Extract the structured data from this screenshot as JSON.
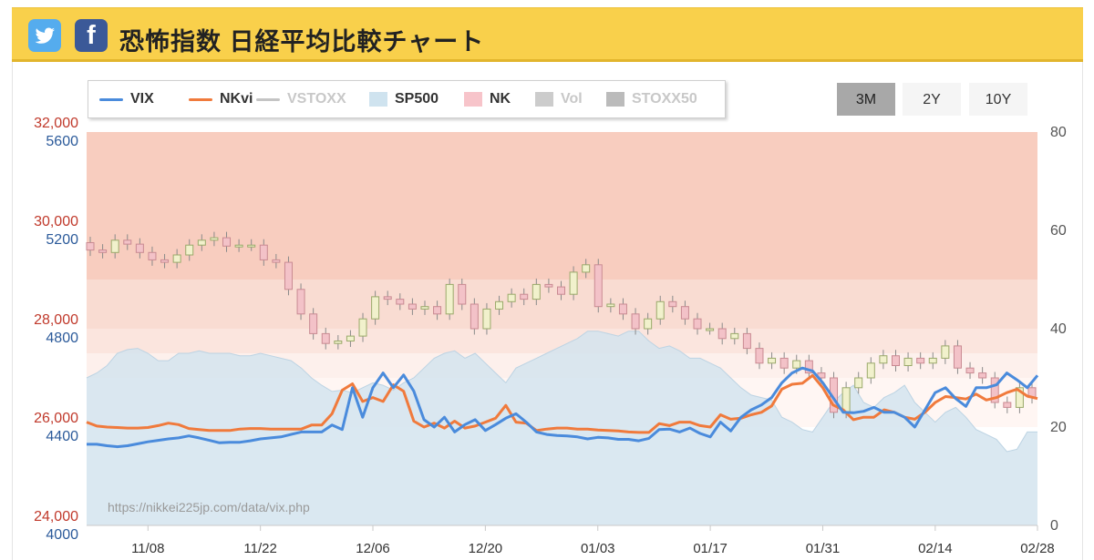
{
  "header": {
    "title": "恐怖指数 日経平均比較チャート",
    "twitter_icon": "twitter-icon",
    "facebook_icon": "facebook-icon",
    "facebook_glyph": "f",
    "bar_color": "#f9d04b"
  },
  "legend": [
    {
      "label": "VIX",
      "kind": "line",
      "color": "#4a8bdc",
      "active": true
    },
    {
      "label": "NKvi",
      "kind": "line",
      "color": "#f07a3c",
      "active": true
    },
    {
      "label": "VSTOXX",
      "kind": "line",
      "color": "#c4c4c4",
      "active": false
    },
    {
      "label": "SP500",
      "kind": "area",
      "color": "#cfe3ef",
      "active": true
    },
    {
      "label": "NK",
      "kind": "area",
      "color": "#f7c4ca",
      "active": true
    },
    {
      "label": "Vol",
      "kind": "area",
      "color": "#cccccc",
      "active": false
    },
    {
      "label": "STOXX50",
      "kind": "area",
      "color": "#bbbbbb",
      "active": false
    }
  ],
  "range_buttons": [
    {
      "label": "3M",
      "active": true
    },
    {
      "label": "2Y",
      "active": false
    },
    {
      "label": "10Y",
      "active": false
    }
  ],
  "watermark": "https://nikkei225jp.com/data/vix.php",
  "chart_data": {
    "type": "line",
    "x_ticks": [
      "11/08",
      "11/22",
      "12/06",
      "12/20",
      "01/03",
      "01/17",
      "01/31",
      "02/14",
      "02/28"
    ],
    "y_axis_left_nk": {
      "ticks": [
        "32,000",
        "30,000",
        "28,000",
        "26,000",
        "24,000"
      ],
      "range": [
        24000,
        32000
      ],
      "color": "#c0392b"
    },
    "y_axis_left_sp500": {
      "ticks": [
        "5600",
        "5200",
        "4800",
        "4400",
        "4000"
      ],
      "range": [
        4000,
        5600
      ],
      "color": "#2b5a9a"
    },
    "y_axis_right": {
      "ticks": [
        "80",
        "60",
        "40",
        "20",
        "0"
      ],
      "range": [
        0,
        80
      ]
    },
    "background_bands": [
      {
        "from": 50,
        "to": 80,
        "color": "#f8cdbf"
      },
      {
        "from": 40,
        "to": 50,
        "color": "#f9dcd2"
      },
      {
        "from": 35,
        "to": 40,
        "color": "#fbe5de"
      },
      {
        "from": 30,
        "to": 35,
        "color": "#fdf0ec"
      },
      {
        "from": 20,
        "to": 30,
        "color": "#fff6f3"
      }
    ],
    "series": [
      {
        "name": "VIX",
        "axis": "right",
        "color": "#4a8bdc",
        "values": [
          16.5,
          16.5,
          16.2,
          16.0,
          16.2,
          16.6,
          17.0,
          17.3,
          17.6,
          17.8,
          18.2,
          17.8,
          17.3,
          16.8,
          16.9,
          16.9,
          17.2,
          17.6,
          17.8,
          18.0,
          18.5,
          19.0,
          19.0,
          19.0,
          20.4,
          19.5,
          28.0,
          22.0,
          28.0,
          31.0,
          28.0,
          30.6,
          27.3,
          21.5,
          20.0,
          22.0,
          19.0,
          20.5,
          21.5,
          19.3,
          20.5,
          21.8,
          22.7,
          21.0,
          19.0,
          18.5,
          18.3,
          18.2,
          18.0,
          17.6,
          17.9,
          17.8,
          17.5,
          17.5,
          17.2,
          17.7,
          19.5,
          19.6,
          19.0,
          19.8,
          18.7,
          18.0,
          21.0,
          19.2,
          22.0,
          23.5,
          24.5,
          26.0,
          29.0,
          31.0,
          32.0,
          31.4,
          29.0,
          26.0,
          23.0,
          22.9,
          23.2,
          24.0,
          23.0,
          23.0,
          22.0,
          20.0,
          23.5,
          27.0,
          28.0,
          25.8,
          24.2,
          28.0,
          28.0,
          28.6,
          31.0,
          29.6,
          28.0,
          30.5
        ]
      },
      {
        "name": "NKvi",
        "axis": "right",
        "color": "#f07a3c",
        "values": [
          21.0,
          20.2,
          20.0,
          19.9,
          19.8,
          19.8,
          19.9,
          20.3,
          20.8,
          20.5,
          19.7,
          19.5,
          19.3,
          19.3,
          19.3,
          19.6,
          19.7,
          19.7,
          19.6,
          19.6,
          19.6,
          19.6,
          20.4,
          20.4,
          22.7,
          27.5,
          28.8,
          25.2,
          26.0,
          25.2,
          28.6,
          27.3,
          21.2,
          20.0,
          20.8,
          19.8,
          21.2,
          19.8,
          20.2,
          21.0,
          21.8,
          24.4,
          21.0,
          20.8,
          19.3,
          19.6,
          19.8,
          19.8,
          19.6,
          19.6,
          19.4,
          19.3,
          19.2,
          19.0,
          18.9,
          18.9,
          20.7,
          20.3,
          21.0,
          21.0,
          20.3,
          20.0,
          22.5,
          21.6,
          21.8,
          22.5,
          23.0,
          24.3,
          27.7,
          28.7,
          28.9,
          30.5,
          28.0,
          24.5,
          23.5,
          21.5,
          22.0,
          22.0,
          23.5,
          23.0,
          22.0,
          21.6,
          23.0,
          25.0,
          26.2,
          26.0,
          25.7,
          26.7,
          25.5,
          26.0,
          27.0,
          27.7,
          26.3,
          25.8
        ]
      },
      {
        "name": "SP500",
        "axis": "left_sp500",
        "color": "#cfe3ef",
        "values": [
          4600,
          4620,
          4650,
          4700,
          4715,
          4720,
          4700,
          4670,
          4670,
          4700,
          4700,
          4710,
          4700,
          4700,
          4700,
          4690,
          4690,
          4700,
          4690,
          4680,
          4670,
          4640,
          4600,
          4570,
          4545,
          4550,
          4540,
          4560,
          4580,
          4570,
          4550,
          4580,
          4600,
          4640,
          4680,
          4700,
          4710,
          4680,
          4700,
          4660,
          4620,
          4580,
          4640,
          4660,
          4680,
          4700,
          4720,
          4740,
          4760,
          4790,
          4790,
          4780,
          4770,
          4790,
          4790,
          4750,
          4720,
          4730,
          4710,
          4680,
          4680,
          4660,
          4640,
          4600,
          4560,
          4530,
          4520,
          4510,
          4440,
          4420,
          4390,
          4380,
          4440,
          4500,
          4540,
          4570,
          4500,
          4480,
          4520,
          4540,
          4570,
          4500,
          4460,
          4420,
          4460,
          4480,
          4440,
          4390,
          4370,
          4350,
          4300,
          4310,
          4380,
          4380
        ]
      },
      {
        "name": "NK",
        "axis": "left_nk",
        "type": "candlestick",
        "color": "#f7c4ca",
        "values": [
          29600,
          29550,
          29800,
          29720,
          29550,
          29400,
          29350,
          29500,
          29700,
          29800,
          29850,
          29680,
          29700,
          29700,
          29400,
          29350,
          28800,
          28300,
          27900,
          27700,
          27750,
          27850,
          28200,
          28650,
          28600,
          28500,
          28400,
          28450,
          28300,
          28900,
          28500,
          28000,
          28400,
          28550,
          28700,
          28600,
          28900,
          28850,
          28700,
          29150,
          29300,
          28450,
          28500,
          28300,
          28000,
          28200,
          28550,
          28450,
          28200,
          28000,
          28000,
          27800,
          27900,
          27600,
          27300,
          27400,
          27200,
          27350,
          27100,
          27000,
          26300,
          26800,
          27000,
          27300,
          27450,
          27250,
          27400,
          27300,
          27400,
          27650,
          27200,
          27100,
          27000,
          26500,
          26400,
          26800,
          26600
        ]
      }
    ],
    "x_range": [
      0,
      93
    ]
  }
}
